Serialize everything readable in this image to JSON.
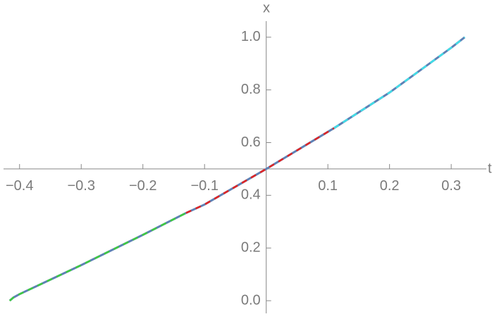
{
  "chart_data": {
    "type": "line",
    "x_label": "t",
    "y_label": "x",
    "xlim": [
      -0.426,
      0.357
    ],
    "ylim": [
      -0.048,
      1.061
    ],
    "axes_origin": [
      0,
      0.5
    ],
    "xticks": [
      {
        "value": -0.4,
        "label": "−0.4"
      },
      {
        "value": -0.3,
        "label": "−0.3"
      },
      {
        "value": -0.2,
        "label": "−0.2"
      },
      {
        "value": -0.1,
        "label": "−0.1"
      },
      0.1,
      0.2,
      0.3
    ],
    "yticks": [
      {
        "value": 0,
        "label": "0.0"
      },
      0.2,
      0.4,
      0.6,
      0.8,
      {
        "value": 1,
        "label": "1.0"
      }
    ],
    "series": [
      {
        "color": "#5e81b5",
        "dashed": false,
        "x": [
          -0.416,
          -0.41,
          -0.4,
          -0.35,
          -0.3,
          -0.2,
          -0.13,
          -0.1,
          0,
          0.1,
          0.11,
          0.2,
          0.3,
          0.322
        ],
        "values": [
          0,
          0.012,
          0.025,
          0.08,
          0.135,
          0.25,
          0.333,
          0.365,
          0.5,
          0.641,
          0.655,
          0.79,
          0.96,
          1
        ]
      },
      {
        "color": "#3ecc3e",
        "dashed": true,
        "x": [
          -0.416,
          -0.41,
          -0.4,
          -0.35,
          -0.3,
          -0.2,
          -0.13
        ],
        "values": [
          0,
          0.012,
          0.025,
          0.08,
          0.135,
          0.25,
          0.333
        ]
      },
      {
        "color": "#e02424",
        "dashed": true,
        "x": [
          -0.13,
          -0.1,
          0,
          0.1,
          0.11
        ],
        "values": [
          0.333,
          0.365,
          0.5,
          0.641,
          0.655
        ]
      },
      {
        "color": "#3fe0e8",
        "dashed": true,
        "x": [
          0.11,
          0.2,
          0.3,
          0.322
        ],
        "values": [
          0.655,
          0.79,
          0.96,
          1
        ]
      }
    ]
  }
}
